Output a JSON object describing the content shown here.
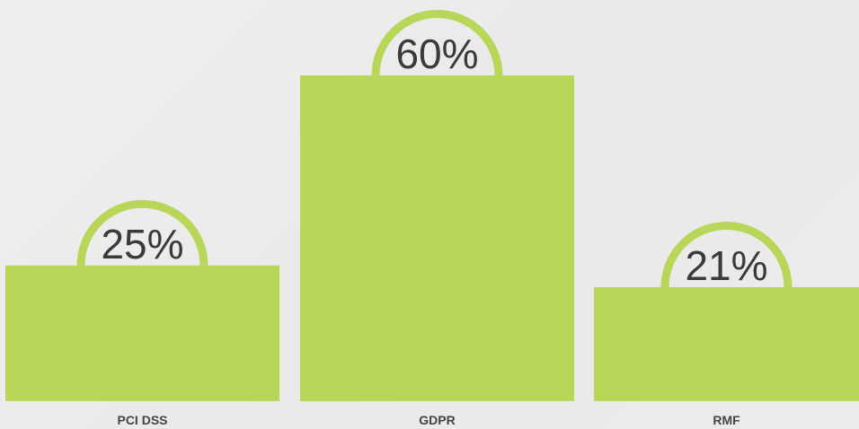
{
  "chart_data": {
    "type": "bar",
    "categories": [
      "PCI DSS",
      "GDPR",
      "RMF"
    ],
    "values": [
      25,
      60,
      21
    ],
    "data_labels": [
      "25%",
      "60%",
      "21%"
    ],
    "ylim": [
      0,
      60
    ],
    "grid": false,
    "legend": "none"
  },
  "colors": {
    "bar": "#b8d658",
    "label_text": "#3a3a3a",
    "category_text": "#444444"
  }
}
